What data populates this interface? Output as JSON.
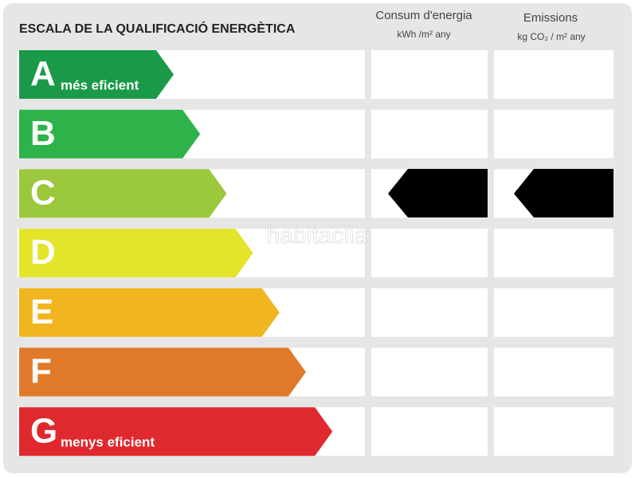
{
  "title": "ESCALA DE LA QUALIFICACIÓ ENERGÈTICA",
  "columns": [
    {
      "title": "Consum d'energia",
      "unit": "kWh /m² any"
    },
    {
      "title": "Emissions",
      "unit": "kg CO₂ / m² any"
    }
  ],
  "rows": [
    {
      "letter": "A",
      "note": "més eficient",
      "color": "#1a9a48"
    },
    {
      "letter": "B",
      "color": "#2db34a"
    },
    {
      "letter": "C",
      "color": "#9bc83c"
    },
    {
      "letter": "D",
      "color": "#e4e42a"
    },
    {
      "letter": "E",
      "color": "#f1b520"
    },
    {
      "letter": "F",
      "color": "#e07a2a"
    },
    {
      "letter": "G",
      "note": "menys eficient",
      "color": "#e0292e"
    }
  ],
  "watermark": "habitaclia"
}
